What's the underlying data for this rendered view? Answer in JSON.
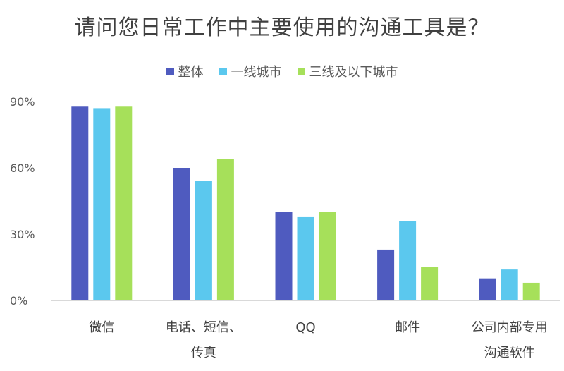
{
  "chart_data": {
    "type": "bar",
    "title": "请问您日常工作中主要使用的沟通工具是？",
    "categories": [
      [
        "微信"
      ],
      [
        "电话、短信、",
        "传真"
      ],
      [
        "QQ"
      ],
      [
        "邮件"
      ],
      [
        "公司内部专用",
        "沟通软件"
      ]
    ],
    "series": [
      {
        "name": "整体",
        "color": "#4f5bbf",
        "values": [
          88,
          60,
          40,
          23,
          10
        ]
      },
      {
        "name": "一线城市",
        "color": "#5bc8ee",
        "values": [
          87,
          54,
          38,
          36,
          14
        ]
      },
      {
        "name": "三线及以下城市",
        "color": "#a6e05a",
        "values": [
          88,
          64,
          40,
          15,
          8
        ]
      }
    ],
    "ylim": [
      0,
      90
    ],
    "yticks": [
      0,
      30,
      60,
      90
    ],
    "ytick_labels": [
      "0%",
      "30%",
      "60%",
      "90%"
    ],
    "grid": false,
    "legend_position": "top-center"
  }
}
